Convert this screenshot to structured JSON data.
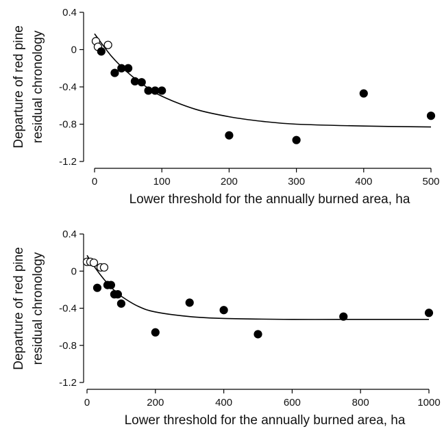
{
  "chart_data": [
    {
      "type": "scatter",
      "title": "",
      "xlabel": "Lower threshold for the annually burned area, ha",
      "ylabel_lines": [
        "Departure of red pine",
        "residual chronology"
      ],
      "xlim": [
        0,
        500
      ],
      "ylim": [
        -1.2,
        0.4
      ],
      "xticks": [
        0,
        100,
        200,
        300,
        400,
        500
      ],
      "yticks": [
        0.4,
        0,
        -0.4,
        -0.8,
        -1.2
      ],
      "xtick_labels": [
        "0",
        "100",
        "200",
        "300",
        "400",
        "500"
      ],
      "ytick_labels": [
        "0.4",
        "0",
        "-0.4",
        "-0.8",
        "-1.2"
      ],
      "grid": false,
      "series": [
        {
          "marker": "open-circle",
          "x": [
            2,
            5,
            20
          ],
          "y": [
            0.09,
            0.03,
            0.05
          ]
        },
        {
          "marker": "filled-circle",
          "x": [
            10,
            30,
            40,
            50,
            60,
            70,
            80,
            90,
            100,
            200,
            300,
            400,
            500
          ],
          "y": [
            -0.02,
            -0.25,
            -0.2,
            -0.2,
            -0.34,
            -0.35,
            -0.44,
            -0.44,
            -0.44,
            -0.92,
            -0.97,
            -0.47,
            -0.71
          ]
        }
      ],
      "fit": {
        "type": "exponential",
        "x": [
          0,
          25,
          50,
          75,
          100,
          150,
          200,
          250,
          300,
          400,
          500
        ],
        "y": [
          0.17,
          -0.07,
          -0.25,
          -0.39,
          -0.5,
          -0.64,
          -0.72,
          -0.77,
          -0.8,
          -0.82,
          -0.83
        ]
      }
    },
    {
      "type": "scatter",
      "title": "",
      "xlabel": "Lower threshold for the annually burned area, ha",
      "ylabel_lines": [
        "Departure of red pine",
        "residual chronology"
      ],
      "xlim": [
        0,
        1000
      ],
      "ylim": [
        -1.2,
        0.4
      ],
      "xticks": [
        0,
        200,
        400,
        600,
        800,
        1000
      ],
      "yticks": [
        0.4,
        0,
        -0.4,
        -0.8,
        -1.2
      ],
      "xtick_labels": [
        "0",
        "200",
        "400",
        "600",
        "800",
        "1000"
      ],
      "ytick_labels": [
        "0.4",
        "0",
        "-0.4",
        "-0.8",
        "-1.2"
      ],
      "grid": false,
      "series": [
        {
          "marker": "open-circle",
          "x": [
            0,
            10,
            20,
            40,
            50
          ],
          "y": [
            0.1,
            0.1,
            0.09,
            0.04,
            0.04
          ]
        },
        {
          "marker": "filled-circle",
          "x": [
            30,
            60,
            70,
            80,
            90,
            100,
            200,
            300,
            400,
            500,
            750,
            1000
          ],
          "y": [
            -0.18,
            -0.15,
            -0.15,
            -0.25,
            -0.25,
            -0.35,
            -0.66,
            -0.34,
            -0.42,
            -0.68,
            -0.49,
            -0.45
          ]
        }
      ],
      "fit": {
        "type": "exponential",
        "x": [
          0,
          25,
          50,
          75,
          100,
          150,
          200,
          300,
          400,
          600,
          800,
          1000
        ],
        "y": [
          0.17,
          0.03,
          -0.09,
          -0.19,
          -0.27,
          -0.38,
          -0.44,
          -0.49,
          -0.51,
          -0.52,
          -0.52,
          -0.52
        ]
      }
    }
  ]
}
